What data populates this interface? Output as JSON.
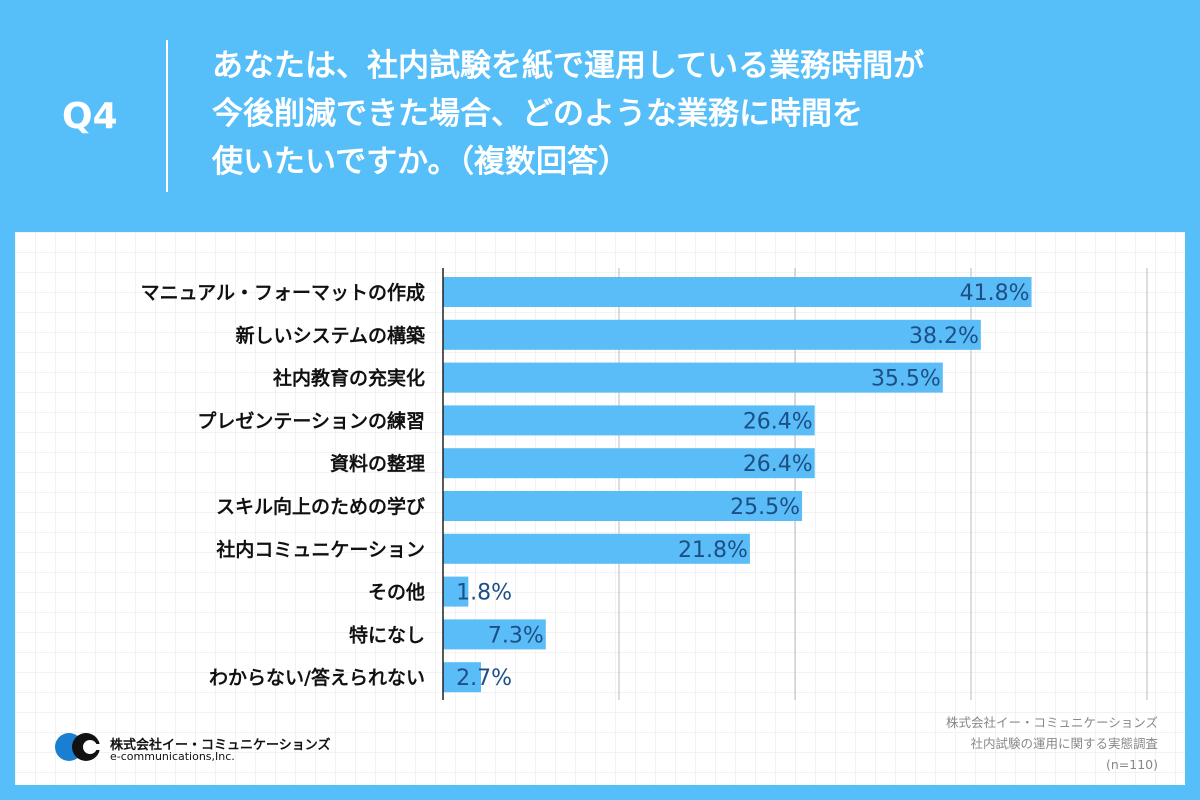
{
  "header": {
    "question_number": "Q4",
    "title_lines": [
      "あなたは、社内試験を紙で運用している業務時間が",
      "今後削減できた場合、どのような業務に時間を",
      "使いたいですか。（複数回答）"
    ]
  },
  "chart_data": {
    "type": "bar",
    "orientation": "horizontal",
    "categories": [
      "マニュアル・フォーマットの作成",
      "新しいシステムの構築",
      "社内教育の充実化",
      "プレゼンテーションの練習",
      "資料の整理",
      "スキル向上のための学び",
      "社内コミュニケーション",
      "その他",
      "特になし",
      "わからない/答えられない"
    ],
    "values": [
      41.8,
      38.2,
      35.5,
      26.4,
      26.4,
      25.5,
      21.8,
      1.8,
      7.3,
      2.7
    ],
    "value_labels": [
      "41.8%",
      "38.2%",
      "35.5%",
      "26.4%",
      "26.4%",
      "25.5%",
      "21.8%",
      "1.8%",
      "7.3%",
      "2.7%"
    ],
    "xlim": [
      0,
      50
    ],
    "gridlines": [
      12.5,
      25,
      37.5,
      50
    ],
    "grid": true,
    "bar_color": "#5bbdf7",
    "label_color": "#1d4f86"
  },
  "footer": {
    "logo_jp": "株式会社イー・コミュニケーションズ",
    "logo_en": "e-communications,Inc.",
    "source_lines": [
      "株式会社イー・コミュニケーションズ",
      "社内試験の運用に関する実態調査",
      "(n=110)"
    ]
  }
}
